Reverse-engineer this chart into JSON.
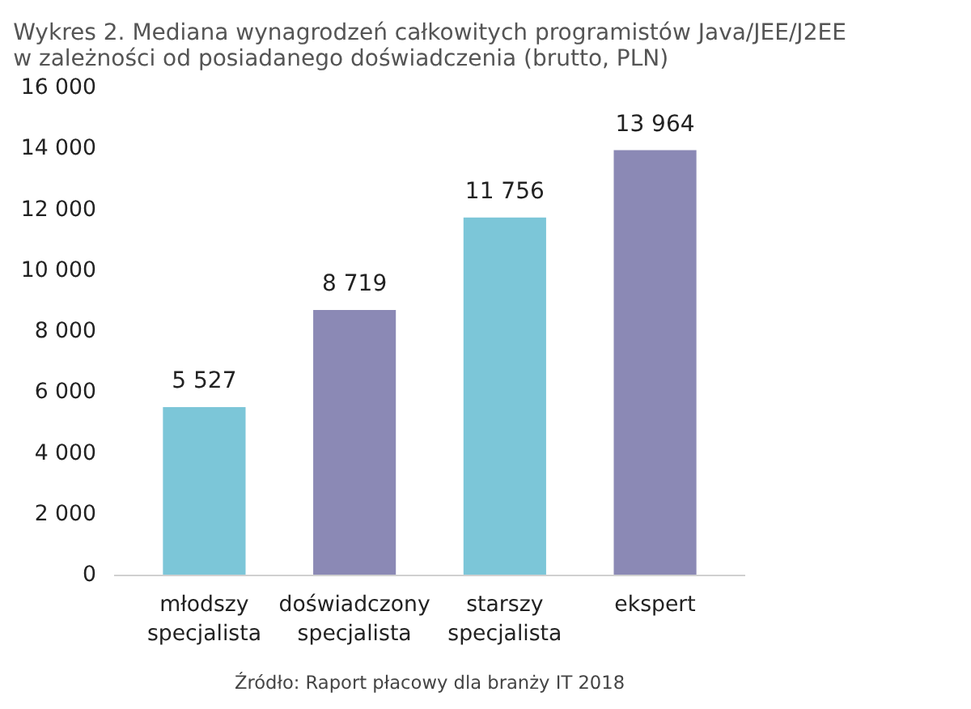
{
  "chart_data": {
    "type": "bar",
    "title": "Wykres 2. Mediana wynagrodzeń całkowitych programistów Java/JEE/J2EE\nw zależności od posiadanego doświadczenia (brutto, PLN)",
    "categories": [
      "młodszy\nspecjalista",
      "doświadczony\nspecjalista",
      "starszy\nspecjalista",
      "ekspert"
    ],
    "values": [
      5527,
      8719,
      11756,
      13964
    ],
    "colors": [
      "#7cc6d8",
      "#8b89b5",
      "#7cc6d8",
      "#8b89b5"
    ],
    "value_labels": [
      "5 527",
      "8 719",
      "11 756",
      "13 964"
    ],
    "ylim": [
      0,
      16000
    ],
    "yticks": [
      {
        "value": 0,
        "label": "0"
      },
      {
        "value": 2000,
        "label": "2 000"
      },
      {
        "value": 4000,
        "label": "4 000"
      },
      {
        "value": 6000,
        "label": "6 000"
      },
      {
        "value": 8000,
        "label": "8 000"
      },
      {
        "value": 10000,
        "label": "10 000"
      },
      {
        "value": 12000,
        "label": "12 000"
      },
      {
        "value": 14000,
        "label": "14 000"
      },
      {
        "value": 16000,
        "label": "16 000"
      }
    ],
    "grid": false,
    "annotations": [
      "Źródło: Raport płacowy dla branży IT 2018"
    ]
  }
}
